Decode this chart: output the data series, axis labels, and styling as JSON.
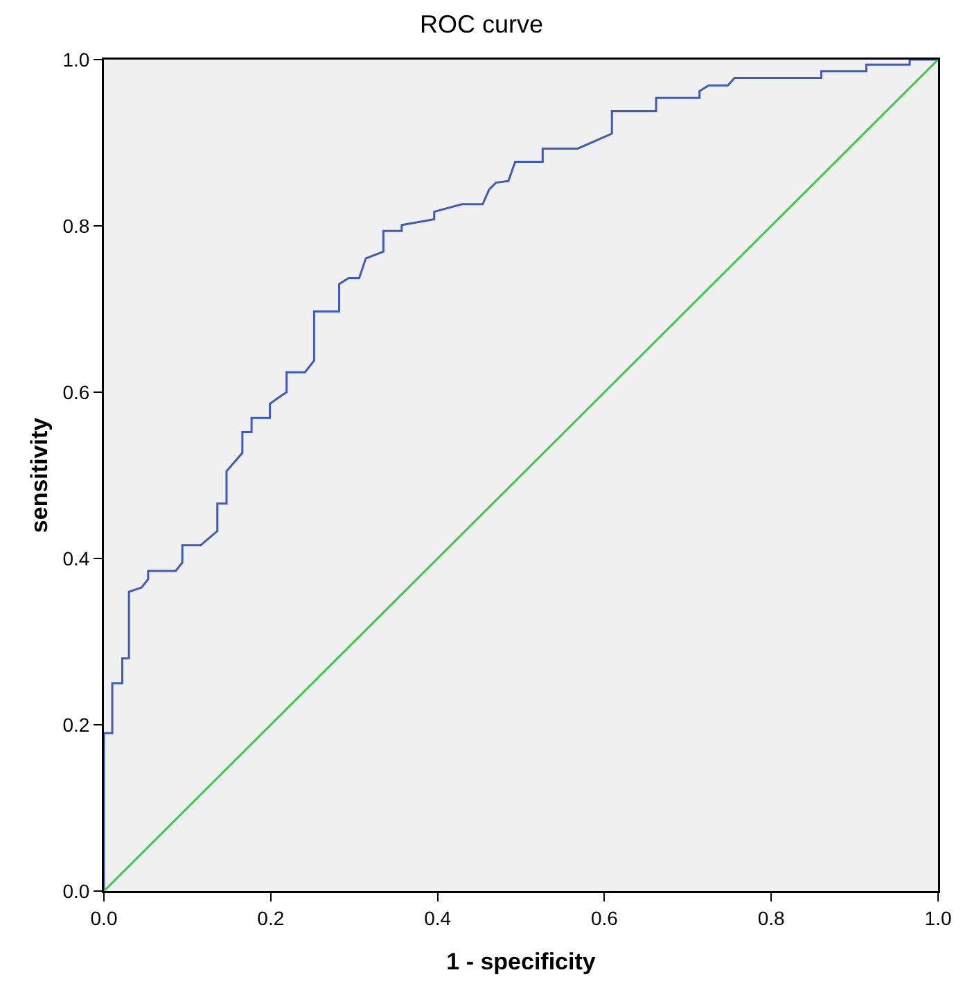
{
  "chart_data": {
    "type": "line",
    "title": "ROC curve",
    "xlabel": "1 - specificity",
    "ylabel": "sensitivity",
    "xlim": [
      0,
      1
    ],
    "ylim": [
      0,
      1
    ],
    "xticks": [
      {
        "value": 0,
        "label": "0.0"
      },
      {
        "value": 0.2,
        "label": "0.2"
      },
      {
        "value": 0.4,
        "label": "0.4"
      },
      {
        "value": 0.6,
        "label": "0.6"
      },
      {
        "value": 0.8,
        "label": "0.8"
      },
      {
        "value": 1,
        "label": "1.0"
      }
    ],
    "yticks": [
      {
        "value": 0,
        "label": "0.0"
      },
      {
        "value": 0.2,
        "label": "0.2"
      },
      {
        "value": 0.4,
        "label": "0.4"
      },
      {
        "value": 0.6,
        "label": "0.6"
      },
      {
        "value": 0.8,
        "label": "0.8"
      },
      {
        "value": 1,
        "label": "1.0"
      }
    ],
    "grid": false,
    "marker": "none",
    "line_style": "solid",
    "series": [
      {
        "color": "#3f5ab8",
        "x": [
          0,
          0,
          0.01,
          0.01,
          0.022,
          0.022,
          0.03,
          0.03,
          0.045,
          0.053,
          0.053,
          0.086,
          0.094,
          0.094,
          0.116,
          0.136,
          0.136,
          0.147,
          0.147,
          0.166,
          0.166,
          0.177,
          0.177,
          0.199,
          0.199,
          0.21,
          0.219,
          0.219,
          0.241,
          0.252,
          0.252,
          0.282,
          0.282,
          0.293,
          0.306,
          0.314,
          0.335,
          0.335,
          0.357,
          0.357,
          0.396,
          0.396,
          0.429,
          0.454,
          0.462,
          0.47,
          0.485,
          0.493,
          0.526,
          0.526,
          0.568,
          0.609,
          0.609,
          0.662,
          0.662,
          0.714,
          0.714,
          0.725,
          0.748,
          0.756,
          0.86,
          0.86,
          0.914,
          0.914,
          0.966,
          0.966,
          1
        ],
        "values": [
          0,
          0.19,
          0.19,
          0.25,
          0.25,
          0.28,
          0.28,
          0.36,
          0.365,
          0.375,
          0.385,
          0.385,
          0.395,
          0.416,
          0.416,
          0.433,
          0.466,
          0.466,
          0.505,
          0.527,
          0.552,
          0.552,
          0.569,
          0.569,
          0.586,
          0.594,
          0.6,
          0.624,
          0.624,
          0.638,
          0.697,
          0.697,
          0.73,
          0.737,
          0.737,
          0.761,
          0.769,
          0.794,
          0.794,
          0.801,
          0.808,
          0.817,
          0.826,
          0.826,
          0.844,
          0.852,
          0.854,
          0.877,
          0.877,
          0.893,
          0.893,
          0.911,
          0.938,
          0.938,
          0.954,
          0.954,
          0.962,
          0.969,
          0.969,
          0.978,
          0.978,
          0.986,
          0.986,
          0.994,
          0.994,
          1,
          1
        ]
      },
      {
        "color": "#3cc84b",
        "x": [
          0,
          1
        ],
        "values": [
          0,
          1
        ]
      }
    ]
  }
}
